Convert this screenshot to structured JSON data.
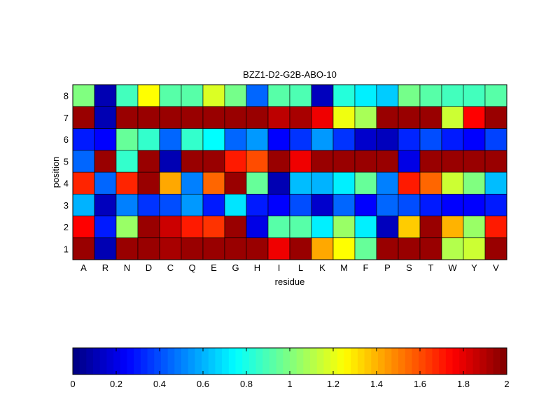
{
  "chart_data": {
    "type": "heatmap",
    "title": "BZZ1-D2-G2B-ABO-10",
    "xlabel": "residue",
    "ylabel": "position",
    "x_categories": [
      "A",
      "R",
      "N",
      "D",
      "C",
      "Q",
      "E",
      "G",
      "H",
      "I",
      "L",
      "K",
      "M",
      "F",
      "P",
      "S",
      "T",
      "W",
      "Y",
      "V"
    ],
    "y_categories": [
      "1",
      "2",
      "3",
      "4",
      "5",
      "6",
      "7",
      "8"
    ],
    "colormap": "jet",
    "clim": [
      0,
      2
    ],
    "colorbar": {
      "orientation": "horizontal",
      "placement": "bottom",
      "ticks": [
        0,
        0.2,
        0.4,
        0.6,
        0.8,
        1,
        1.2,
        1.4,
        1.6,
        1.8,
        2
      ],
      "tick_labels": [
        "0",
        "0.2",
        "0.4",
        "0.6",
        "0.8",
        "1",
        "1.2",
        "1.4",
        "1.6",
        "1.8",
        "2"
      ]
    },
    "values": [
      [
        1.95,
        0.1,
        1.95,
        1.95,
        1.92,
        1.95,
        1.95,
        1.95,
        1.95,
        1.78,
        1.95,
        1.42,
        1.25,
        0.95,
        1.95,
        1.95,
        1.95,
        1.1,
        1.15,
        1.95
      ],
      [
        1.75,
        0.3,
        1.05,
        1.95,
        1.85,
        1.7,
        1.65,
        1.95,
        0.2,
        0.92,
        0.92,
        0.72,
        1.05,
        0.72,
        0.12,
        1.35,
        1.95,
        1.4,
        1.05,
        1.7
      ],
      [
        0.6,
        0.12,
        0.5,
        0.35,
        0.4,
        0.55,
        0.3,
        0.7,
        0.3,
        0.25,
        0.4,
        0.15,
        0.45,
        0.25,
        0.45,
        0.4,
        0.3,
        0.25,
        0.25,
        0.3
      ],
      [
        1.68,
        0.45,
        1.68,
        1.95,
        1.42,
        0.5,
        1.55,
        1.95,
        0.95,
        0.1,
        0.62,
        0.6,
        0.72,
        0.95,
        0.5,
        1.7,
        1.55,
        1.15,
        1.0,
        0.62
      ],
      [
        0.45,
        1.95,
        0.85,
        1.95,
        0.1,
        1.95,
        1.95,
        1.7,
        1.6,
        1.95,
        1.78,
        1.95,
        1.95,
        1.95,
        1.95,
        0.2,
        1.95,
        1.95,
        1.95,
        1.95
      ],
      [
        0.3,
        0.25,
        0.95,
        0.85,
        0.45,
        0.85,
        0.75,
        0.45,
        0.55,
        0.25,
        0.35,
        0.55,
        0.35,
        0.15,
        0.12,
        0.32,
        0.4,
        0.3,
        0.25,
        0.38
      ],
      [
        1.95,
        0.1,
        1.95,
        1.95,
        1.95,
        1.95,
        1.95,
        1.95,
        1.95,
        1.88,
        1.92,
        1.78,
        1.22,
        1.08,
        1.95,
        1.95,
        1.95,
        1.15,
        1.75,
        1.95
      ],
      [
        1.0,
        0.1,
        0.88,
        1.25,
        0.92,
        0.92,
        1.18,
        0.98,
        0.45,
        0.92,
        0.9,
        0.12,
        0.82,
        0.72,
        0.65,
        0.98,
        0.92,
        0.88,
        0.88,
        0.92
      ]
    ]
  }
}
